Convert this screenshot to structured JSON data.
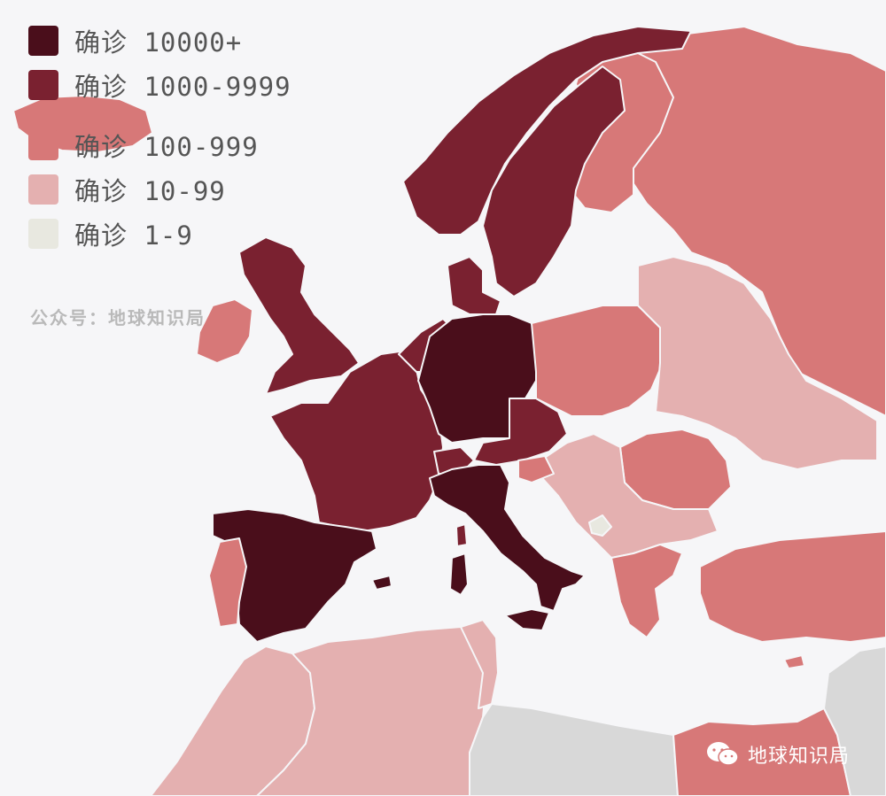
{
  "legend": {
    "items": [
      {
        "label": "确诊 10000+",
        "color": "#4a0e1b"
      },
      {
        "label": "确诊 1000-9999",
        "color": "#7a2130"
      },
      {
        "label": "确诊 100-999",
        "color": "#d77878"
      },
      {
        "label": "确诊 10-99",
        "color": "#e4b0b0"
      },
      {
        "label": "确诊 1-9",
        "color": "#e8e8e0"
      }
    ]
  },
  "credit": "公众号：地球知识局",
  "watermark": {
    "icon": "wechat-icon",
    "text": "地球知识局"
  },
  "colors": {
    "background": "#f6f6f8",
    "no_data": "#d8d8d8"
  },
  "regions": [
    {
      "name": "Iceland",
      "class": "确诊 100-999"
    },
    {
      "name": "Norway",
      "class": "确诊 1000-9999"
    },
    {
      "name": "Sweden",
      "class": "确诊 1000-9999"
    },
    {
      "name": "Finland",
      "class": "确诊 100-999"
    },
    {
      "name": "Russia",
      "class": "确诊 100-999"
    },
    {
      "name": "United Kingdom",
      "class": "确诊 1000-9999"
    },
    {
      "name": "Ireland",
      "class": "确诊 100-999"
    },
    {
      "name": "Denmark",
      "class": "确诊 1000-9999"
    },
    {
      "name": "Netherlands",
      "class": "确诊 1000-9999"
    },
    {
      "name": "Belgium",
      "class": "确诊 1000-9999"
    },
    {
      "name": "France",
      "class": "确诊 1000-9999"
    },
    {
      "name": "Germany",
      "class": "确诊 10000+"
    },
    {
      "name": "Switzerland",
      "class": "确诊 1000-9999"
    },
    {
      "name": "Austria",
      "class": "确诊 1000-9999"
    },
    {
      "name": "Czechia",
      "class": "确诊 1000-9999"
    },
    {
      "name": "Italy",
      "class": "确诊 10000+"
    },
    {
      "name": "Spain",
      "class": "确诊 10000+"
    },
    {
      "name": "Portugal",
      "class": "确诊 100-999"
    },
    {
      "name": "Poland",
      "class": "确诊 100-999"
    },
    {
      "name": "Belarus",
      "class": "确诊 10-99"
    },
    {
      "name": "Ukraine",
      "class": "确诊 10-99"
    },
    {
      "name": "Romania",
      "class": "确诊 100-999"
    },
    {
      "name": "Slovenia",
      "class": "确诊 100-999"
    },
    {
      "name": "Balkans",
      "class": "确诊 10-99"
    },
    {
      "name": "Montenegro",
      "class": "确诊 1-9"
    },
    {
      "name": "Greece",
      "class": "确诊 100-999"
    },
    {
      "name": "Turkey",
      "class": "确诊 100-999"
    },
    {
      "name": "Morocco",
      "class": "确诊 10-99"
    },
    {
      "name": "Algeria",
      "class": "确诊 10-99"
    },
    {
      "name": "Tunisia",
      "class": "确诊 10-99"
    },
    {
      "name": "Libya",
      "class": "no data"
    },
    {
      "name": "Egypt",
      "class": "确诊 100-999"
    },
    {
      "name": "Middle East",
      "class": "no data"
    }
  ]
}
